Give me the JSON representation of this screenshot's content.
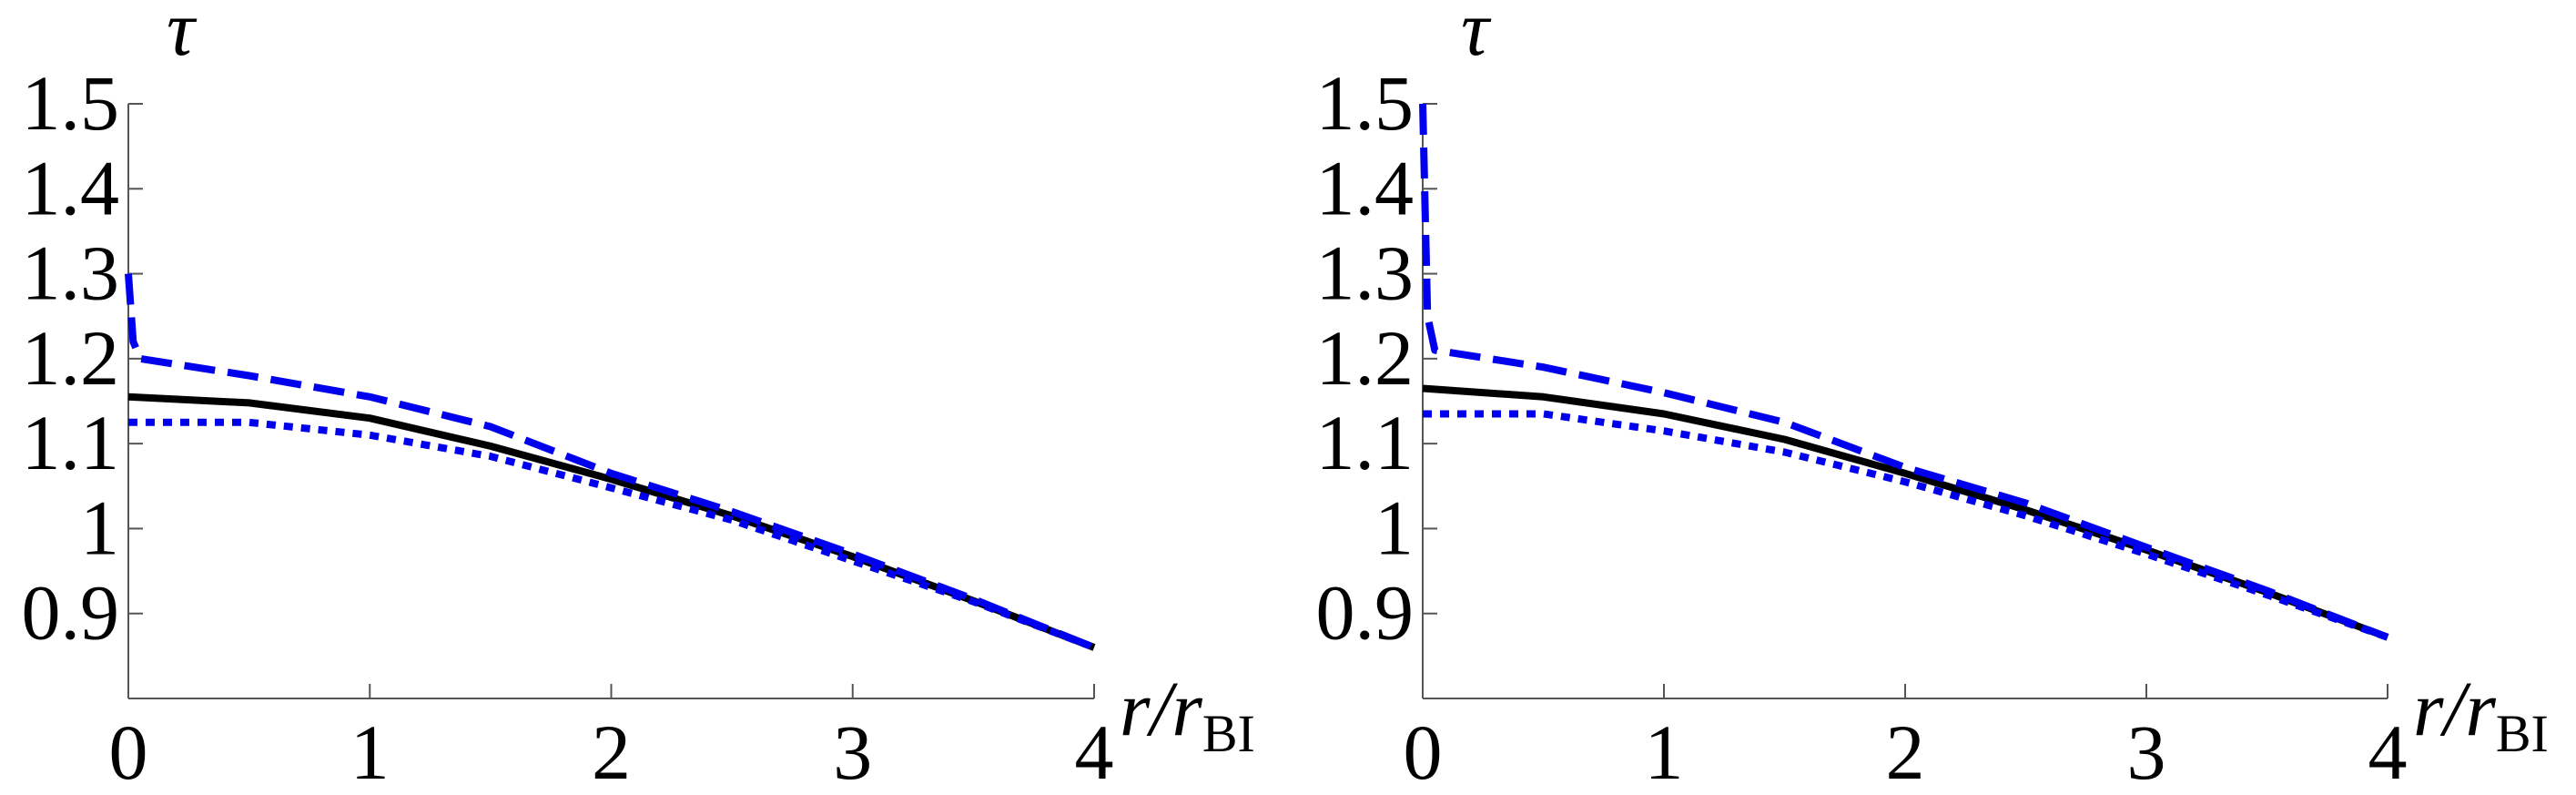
{
  "chart_data": [
    {
      "type": "line",
      "y_label": "τ",
      "x_label": "r/r",
      "x_label_subscript": "BI",
      "xlim": [
        0,
        4
      ],
      "ylim": [
        0.8,
        1.5
      ],
      "xticks": [
        0,
        1,
        2,
        3,
        4
      ],
      "yticks": [
        0.9,
        1,
        1.1,
        1.2,
        1.3,
        1.4,
        1.5
      ],
      "series": [
        {
          "style": "solid",
          "color": "#000000",
          "x": [
            0,
            0.5,
            1,
            1.5,
            2,
            2.5,
            3,
            3.5,
            4
          ],
          "values": [
            1.155,
            1.148,
            1.13,
            1.097,
            1.058,
            1.015,
            0.967,
            0.915,
            0.86
          ]
        },
        {
          "style": "dashed",
          "color": "#0000ee",
          "x": [
            0,
            0.02,
            0.05,
            0.5,
            1,
            1.5,
            2,
            2.5,
            3,
            3.5,
            4
          ],
          "values": [
            1.3,
            1.22,
            1.2,
            1.18,
            1.155,
            1.12,
            1.065,
            1.02,
            0.97,
            0.917,
            0.86
          ]
        },
        {
          "style": "dotted",
          "color": "#0000ee",
          "x": [
            0,
            0.5,
            1,
            1.5,
            2,
            2.5,
            3,
            3.5,
            4
          ],
          "values": [
            1.125,
            1.125,
            1.11,
            1.085,
            1.048,
            1.01,
            0.962,
            0.914,
            0.86
          ]
        }
      ]
    },
    {
      "type": "line",
      "y_label": "τ",
      "x_label": "r/r",
      "x_label_subscript": "BI",
      "xlim": [
        0,
        4
      ],
      "ylim": [
        0.8,
        1.5
      ],
      "xticks": [
        0,
        1,
        2,
        3,
        4
      ],
      "yticks": [
        0.9,
        1,
        1.1,
        1.2,
        1.3,
        1.4,
        1.5
      ],
      "series": [
        {
          "style": "solid",
          "color": "#000000",
          "x": [
            0,
            0.5,
            1,
            1.5,
            2,
            2.5,
            3,
            3.5,
            4
          ],
          "values": [
            1.165,
            1.155,
            1.135,
            1.105,
            1.065,
            1.022,
            0.975,
            0.925,
            0.872
          ]
        },
        {
          "style": "dashed",
          "color": "#0000ee",
          "x": [
            0,
            0.02,
            0.05,
            0.5,
            1,
            1.5,
            2,
            2.5,
            3,
            3.5,
            4
          ],
          "values": [
            1.5,
            1.25,
            1.21,
            1.19,
            1.16,
            1.125,
            1.072,
            1.03,
            0.978,
            0.927,
            0.872
          ]
        },
        {
          "style": "dotted",
          "color": "#0000ee",
          "x": [
            0,
            0.5,
            1,
            1.5,
            2,
            2.5,
            3,
            3.5,
            4
          ],
          "values": [
            1.135,
            1.135,
            1.115,
            1.09,
            1.055,
            1.015,
            0.97,
            0.922,
            0.872
          ]
        }
      ]
    }
  ]
}
